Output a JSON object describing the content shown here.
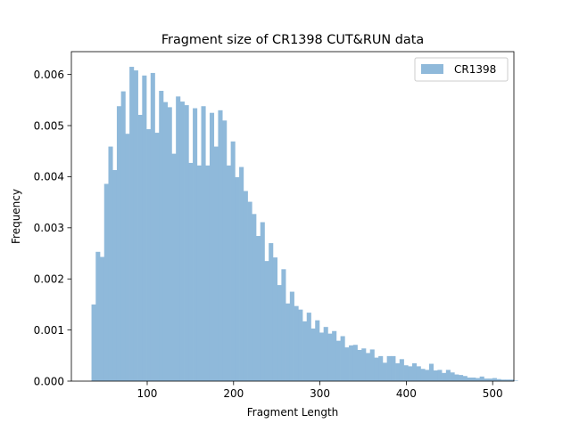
{
  "chart_data": {
    "type": "bar",
    "subtype": "histogram",
    "title": "Fragment size of CR1398 CUT&RUN data",
    "xlabel": "Fragment Length",
    "ylabel": "Frequency",
    "xlim": [
      12.2,
      524.6
    ],
    "ylim": [
      0,
      0.006447
    ],
    "xticks": [
      100,
      200,
      300,
      400,
      500
    ],
    "xtick_labels": [
      "100",
      "200",
      "300",
      "400",
      "500"
    ],
    "yticks": [
      0,
      0.001,
      0.002,
      0.003,
      0.004,
      0.005,
      0.006
    ],
    "ytick_labels": [
      "0.000",
      "0.001",
      "0.002",
      "0.003",
      "0.004",
      "0.005",
      "0.006"
    ],
    "grid": false,
    "legend_position": "top-right",
    "bin_start": 35.5,
    "bin_width": 4.886,
    "series": [
      {
        "name": "CR1398",
        "color": "#8fb9da",
        "values": [
          0.0015,
          0.00253,
          0.00243,
          0.00386,
          0.00459,
          0.00413,
          0.00538,
          0.00567,
          0.00484,
          0.00615,
          0.00608,
          0.00521,
          0.00598,
          0.00493,
          0.00603,
          0.00486,
          0.00568,
          0.00546,
          0.00536,
          0.00445,
          0.00557,
          0.00547,
          0.0054,
          0.00427,
          0.00534,
          0.00422,
          0.00538,
          0.00422,
          0.00525,
          0.00459,
          0.0053,
          0.0051,
          0.00422,
          0.00469,
          0.00399,
          0.00419,
          0.00372,
          0.00351,
          0.00327,
          0.00284,
          0.00311,
          0.00235,
          0.0027,
          0.00242,
          0.00188,
          0.00219,
          0.00152,
          0.00175,
          0.00147,
          0.0014,
          0.00117,
          0.00134,
          0.00103,
          0.00119,
          0.00095,
          0.00106,
          0.00093,
          0.00098,
          0.00079,
          0.00088,
          0.00066,
          0.0007,
          0.00071,
          0.00061,
          0.00064,
          0.00055,
          0.00062,
          0.00046,
          0.00049,
          0.00036,
          0.00049,
          0.00049,
          0.00035,
          0.00043,
          0.00031,
          0.00029,
          0.00035,
          0.00029,
          0.00024,
          0.00022,
          0.00034,
          0.00021,
          0.00022,
          0.00016,
          0.00022,
          0.00017,
          0.00013,
          0.00012,
          0.0001,
          7e-05,
          7e-05,
          6e-05,
          9e-05,
          5e-05,
          5e-05,
          6e-05,
          4e-05,
          3e-05,
          3e-05,
          3e-05,
          1e-05
        ]
      }
    ]
  }
}
